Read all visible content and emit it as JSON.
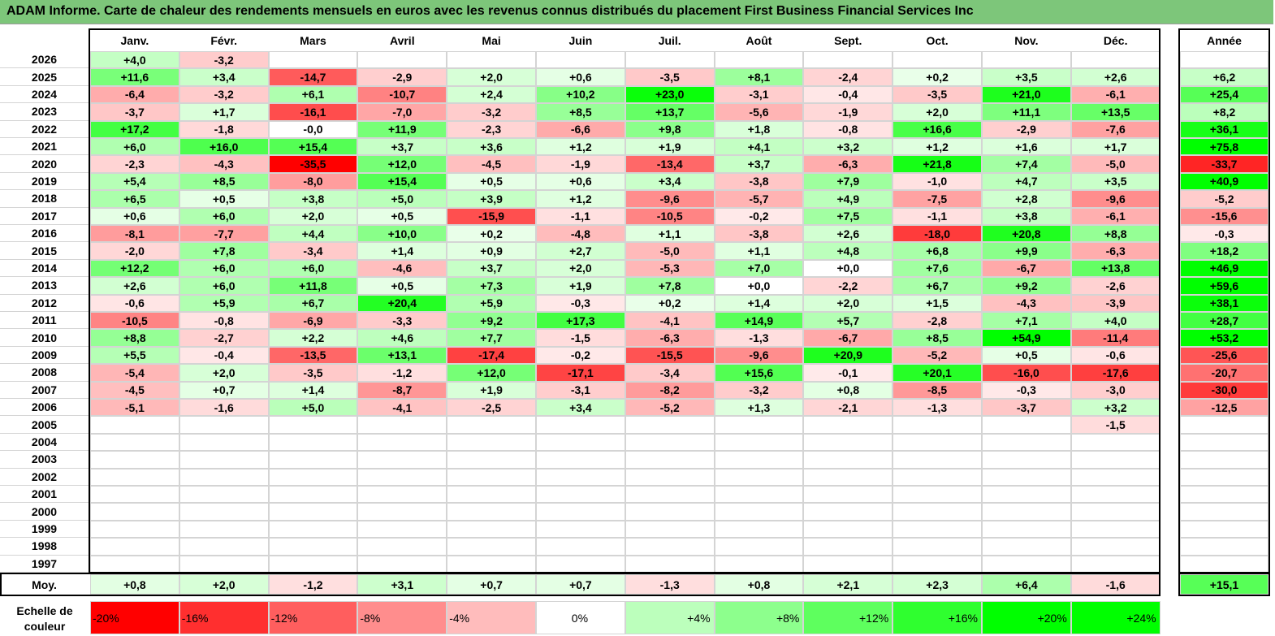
{
  "title": "ADAM Informe. Carte de chaleur des rendements mensuels en euros avec les revenus connus distribués du placement First Business Financial Services Inc",
  "colors": {
    "title_bar": "#7dc67a",
    "positive_max": "#00ff00",
    "negative_max": "#ff0000",
    "neutral": "#ffffff"
  },
  "chart_data": {
    "type": "heatmap",
    "title": "ADAM Informe. Carte de chaleur des rendements mensuels en euros avec les revenus connus distribués du placement First Business Financial Services Inc",
    "months": [
      "Janv.",
      "Févr.",
      "Mars",
      "Avril",
      "Mai",
      "Juin",
      "Juil.",
      "Août",
      "Sept.",
      "Oct.",
      "Nov.",
      "Déc."
    ],
    "year_header": "Année",
    "rows": [
      {
        "year": "2026",
        "values": [
          "+4,0",
          "-3,2",
          "",
          "",
          "",
          "",
          "",
          "",
          "",
          "",
          "",
          ""
        ],
        "annual": ""
      },
      {
        "year": "2025",
        "values": [
          "+11,6",
          "+3,4",
          "-14,7",
          "-2,9",
          "+2,0",
          "+0,6",
          "-3,5",
          "+8,1",
          "-2,4",
          "+0,2",
          "+3,5",
          "+2,6"
        ],
        "annual": "+6,2"
      },
      {
        "year": "2024",
        "values": [
          "-6,4",
          "-3,2",
          "+6,1",
          "-10,7",
          "+2,4",
          "+10,2",
          "+23,0",
          "-3,1",
          "-0,4",
          "-3,5",
          "+21,0",
          "-6,1"
        ],
        "annual": "+25,4"
      },
      {
        "year": "2023",
        "values": [
          "-3,7",
          "+1,7",
          "-16,1",
          "-7,0",
          "-3,2",
          "+8,5",
          "+13,7",
          "-5,6",
          "-1,9",
          "+2,0",
          "+11,1",
          "+13,5"
        ],
        "annual": "+8,2"
      },
      {
        "year": "2022",
        "values": [
          "+17,2",
          "-1,8",
          "-0,0",
          "+11,9",
          "-2,3",
          "-6,6",
          "+9,8",
          "+1,8",
          "-0,8",
          "+16,6",
          "-2,9",
          "-7,6"
        ],
        "annual": "+36,1"
      },
      {
        "year": "2021",
        "values": [
          "+6,0",
          "+16,0",
          "+15,4",
          "+3,7",
          "+3,6",
          "+1,2",
          "+1,9",
          "+4,1",
          "+3,2",
          "+1,2",
          "+1,6",
          "+1,7"
        ],
        "annual": "+75,8"
      },
      {
        "year": "2020",
        "values": [
          "-2,3",
          "-4,3",
          "-35,5",
          "+12,0",
          "-4,5",
          "-1,9",
          "-13,4",
          "+3,7",
          "-6,3",
          "+21,8",
          "+7,4",
          "-5,0"
        ],
        "annual": "-33,7"
      },
      {
        "year": "2019",
        "values": [
          "+5,4",
          "+8,5",
          "-8,0",
          "+15,4",
          "+0,5",
          "+0,6",
          "+3,4",
          "-3,8",
          "+7,9",
          "-1,0",
          "+4,7",
          "+3,5"
        ],
        "annual": "+40,9"
      },
      {
        "year": "2018",
        "values": [
          "+6,5",
          "+0,5",
          "+3,8",
          "+5,0",
          "+3,9",
          "+1,2",
          "-9,6",
          "-5,7",
          "+4,9",
          "-7,5",
          "+2,8",
          "-9,6"
        ],
        "annual": "-5,2"
      },
      {
        "year": "2017",
        "values": [
          "+0,6",
          "+6,0",
          "+2,0",
          "+0,5",
          "-15,9",
          "-1,1",
          "-10,5",
          "-0,2",
          "+7,5",
          "-1,1",
          "+3,8",
          "-6,1"
        ],
        "annual": "-15,6"
      },
      {
        "year": "2016",
        "values": [
          "-8,1",
          "-7,7",
          "+4,4",
          "+10,0",
          "+0,2",
          "-4,8",
          "+1,1",
          "-3,8",
          "+2,6",
          "-18,0",
          "+20,8",
          "+8,8"
        ],
        "annual": "-0,3"
      },
      {
        "year": "2015",
        "values": [
          "-2,0",
          "+7,8",
          "-3,4",
          "+1,4",
          "+0,9",
          "+2,7",
          "-5,0",
          "+1,1",
          "+4,8",
          "+6,8",
          "+9,9",
          "-6,3"
        ],
        "annual": "+18,2"
      },
      {
        "year": "2014",
        "values": [
          "+12,2",
          "+6,0",
          "+6,0",
          "-4,6",
          "+3,7",
          "+2,0",
          "-5,3",
          "+7,0",
          "+0,0",
          "+7,6",
          "-6,7",
          "+13,8"
        ],
        "annual": "+46,9"
      },
      {
        "year": "2013",
        "values": [
          "+2,6",
          "+6,0",
          "+11,8",
          "+0,5",
          "+7,3",
          "+1,9",
          "+7,8",
          "+0,0",
          "-2,2",
          "+6,7",
          "+9,2",
          "-2,6"
        ],
        "annual": "+59,6"
      },
      {
        "year": "2012",
        "values": [
          "-0,6",
          "+5,9",
          "+6,7",
          "+20,4",
          "+5,9",
          "-0,3",
          "+0,2",
          "+1,4",
          "+2,0",
          "+1,5",
          "-4,3",
          "-3,9"
        ],
        "annual": "+38,1"
      },
      {
        "year": "2011",
        "values": [
          "-10,5",
          "-0,8",
          "-6,9",
          "-3,3",
          "+9,2",
          "+17,3",
          "-4,1",
          "+14,9",
          "+5,7",
          "-2,8",
          "+7,1",
          "+4,0"
        ],
        "annual": "+28,7"
      },
      {
        "year": "2010",
        "values": [
          "+8,8",
          "-2,7",
          "+2,2",
          "+4,6",
          "+7,7",
          "-1,5",
          "-6,3",
          "-1,3",
          "-6,7",
          "+8,5",
          "+54,9",
          "-11,4"
        ],
        "annual": "+53,2"
      },
      {
        "year": "2009",
        "values": [
          "+5,5",
          "-0,4",
          "-13,5",
          "+13,1",
          "-17,4",
          "-0,2",
          "-15,5",
          "-9,6",
          "+20,9",
          "-5,2",
          "+0,5",
          "-0,6"
        ],
        "annual": "-25,6"
      },
      {
        "year": "2008",
        "values": [
          "-5,4",
          "+2,0",
          "-3,5",
          "-1,2",
          "+12,0",
          "-17,1",
          "-3,4",
          "+15,6",
          "-0,1",
          "+20,1",
          "-16,0",
          "-17,6"
        ],
        "annual": "-20,7"
      },
      {
        "year": "2007",
        "values": [
          "-4,5",
          "+0,7",
          "+1,4",
          "-8,7",
          "+1,9",
          "-3,1",
          "-8,2",
          "-3,2",
          "+0,8",
          "-8,5",
          "-0,3",
          "-3,0"
        ],
        "annual": "-30,0"
      },
      {
        "year": "2006",
        "values": [
          "-5,1",
          "-1,6",
          "+5,0",
          "-4,1",
          "-2,5",
          "+3,4",
          "-5,2",
          "+1,3",
          "-2,1",
          "-1,3",
          "-3,7",
          "+3,2"
        ],
        "annual": "-12,5"
      },
      {
        "year": "2005",
        "values": [
          "",
          "",
          "",
          "",
          "",
          "",
          "",
          "",
          "",
          "",
          "",
          "-1,5"
        ],
        "annual": ""
      },
      {
        "year": "2004",
        "values": [
          "",
          "",
          "",
          "",
          "",
          "",
          "",
          "",
          "",
          "",
          "",
          ""
        ],
        "annual": ""
      },
      {
        "year": "2003",
        "values": [
          "",
          "",
          "",
          "",
          "",
          "",
          "",
          "",
          "",
          "",
          "",
          ""
        ],
        "annual": ""
      },
      {
        "year": "2002",
        "values": [
          "",
          "",
          "",
          "",
          "",
          "",
          "",
          "",
          "",
          "",
          "",
          ""
        ],
        "annual": ""
      },
      {
        "year": "2001",
        "values": [
          "",
          "",
          "",
          "",
          "",
          "",
          "",
          "",
          "",
          "",
          "",
          ""
        ],
        "annual": ""
      },
      {
        "year": "2000",
        "values": [
          "",
          "",
          "",
          "",
          "",
          "",
          "",
          "",
          "",
          "",
          "",
          ""
        ],
        "annual": ""
      },
      {
        "year": "1999",
        "values": [
          "",
          "",
          "",
          "",
          "",
          "",
          "",
          "",
          "",
          "",
          "",
          ""
        ],
        "annual": ""
      },
      {
        "year": "1998",
        "values": [
          "",
          "",
          "",
          "",
          "",
          "",
          "",
          "",
          "",
          "",
          "",
          ""
        ],
        "annual": ""
      },
      {
        "year": "1997",
        "values": [
          "",
          "",
          "",
          "",
          "",
          "",
          "",
          "",
          "",
          "",
          "",
          ""
        ],
        "annual": ""
      }
    ],
    "average": {
      "label": "Moy.",
      "values": [
        "+0,8",
        "+2,0",
        "-1,2",
        "+3,1",
        "+0,7",
        "+0,7",
        "-1,3",
        "+0,8",
        "+2,1",
        "+2,3",
        "+6,4",
        "-1,6"
      ],
      "annual": "+15,1"
    },
    "scale": {
      "label": "Echelle de couleur",
      "items": [
        {
          "text": "-20%",
          "value": -20
        },
        {
          "text": "-16%",
          "value": -16
        },
        {
          "text": "-12%",
          "value": -12
        },
        {
          "text": "-8%",
          "value": -8
        },
        {
          "text": "-4%",
          "value": -4
        },
        {
          "text": "0%",
          "value": 0
        },
        {
          "text": "+4%",
          "value": 4
        },
        {
          "text": "+8%",
          "value": 8
        },
        {
          "text": "+12%",
          "value": 12
        },
        {
          "text": "+16%",
          "value": 16
        },
        {
          "text": "+20%",
          "value": 20
        },
        {
          "text": "+24%",
          "value": 24
        }
      ]
    }
  }
}
